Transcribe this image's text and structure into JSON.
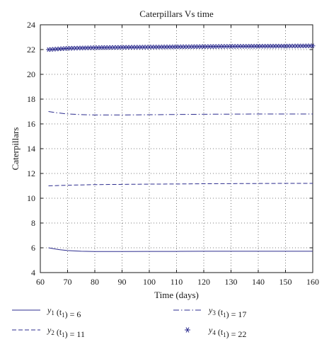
{
  "chart_data": {
    "type": "line",
    "title": "Caterpillars Vs time",
    "xlabel": "Time (days)",
    "ylabel": "Caterpillars",
    "xlim": [
      60,
      160
    ],
    "ylim": [
      4,
      24
    ],
    "xticks": [
      "60",
      "70",
      "80",
      "90",
      "100",
      "110",
      "120",
      "130",
      "140",
      "150",
      "160"
    ],
    "yticks": [
      "4",
      "6",
      "8",
      "10",
      "12",
      "14",
      "16",
      "18",
      "20",
      "22",
      "24"
    ],
    "grid": true,
    "legend_position": "bottom",
    "series": [
      {
        "name": "y1 (t1) = 6",
        "legend_var": "y",
        "legend_sub": "1",
        "legend_arg": "t",
        "legend_arg_sub": "1",
        "legend_value": "6",
        "style": "solid",
        "color": "#2e2e8f",
        "x": [
          63,
          65,
          67,
          70,
          75,
          80,
          90,
          100,
          110,
          120,
          130,
          140,
          150,
          160
        ],
        "y": [
          6.0,
          5.92,
          5.85,
          5.78,
          5.72,
          5.7,
          5.7,
          5.71,
          5.71,
          5.72,
          5.72,
          5.72,
          5.72,
          5.72
        ]
      },
      {
        "name": "y2 (t1) = 11",
        "legend_var": "y",
        "legend_sub": "2",
        "legend_arg": "t",
        "legend_arg_sub": "1",
        "legend_value": "11",
        "style": "dashed",
        "color": "#2e2e8f",
        "x": [
          63,
          70,
          80,
          90,
          100,
          110,
          120,
          130,
          140,
          150,
          160
        ],
        "y": [
          11.0,
          11.05,
          11.1,
          11.12,
          11.14,
          11.15,
          11.17,
          11.18,
          11.19,
          11.2,
          11.2
        ]
      },
      {
        "name": "y3 (t1) = 17",
        "legend_var": "y",
        "legend_sub": "3",
        "legend_arg": "t",
        "legend_arg_sub": "1",
        "legend_value": "17",
        "style": "dashdot",
        "color": "#2e2e8f",
        "x": [
          63,
          66,
          70,
          75,
          80,
          90,
          100,
          110,
          120,
          130,
          140,
          150,
          160
        ],
        "y": [
          17.0,
          16.9,
          16.8,
          16.75,
          16.72,
          16.72,
          16.74,
          16.76,
          16.78,
          16.79,
          16.8,
          16.8,
          16.8
        ]
      },
      {
        "name": "y4 (t1) = 22",
        "legend_var": "y",
        "legend_sub": "4",
        "legend_arg": "t",
        "legend_arg_sub": "1",
        "legend_value": "22",
        "style": "markers",
        "marker": "asterisk",
        "color": "#2e2e8f",
        "x": [
          63,
          70,
          80,
          90,
          100,
          110,
          120,
          130,
          140,
          150,
          160
        ],
        "y": [
          22.0,
          22.1,
          22.15,
          22.18,
          22.2,
          22.22,
          22.24,
          22.26,
          22.27,
          22.28,
          22.3
        ]
      }
    ]
  }
}
